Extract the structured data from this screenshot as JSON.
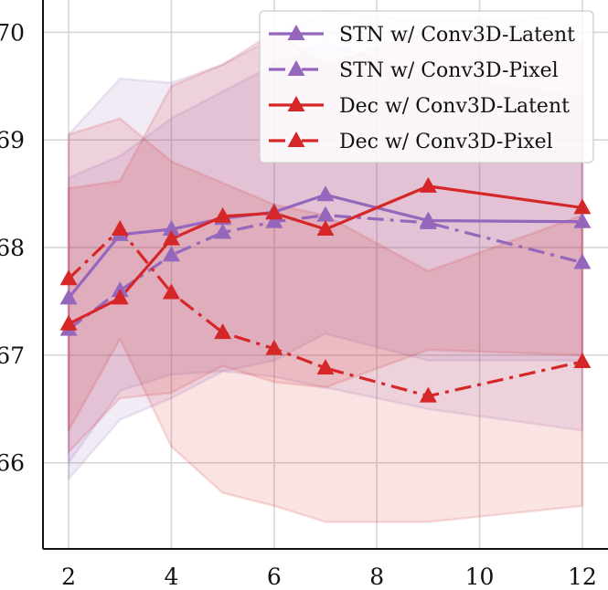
{
  "chart_data": {
    "type": "line",
    "title": "",
    "xlabel": "",
    "ylabel": "",
    "xlim": [
      1.5,
      12.5
    ],
    "ylim": [
      65.2,
      70.3
    ],
    "xticks": [
      2,
      4,
      6,
      8,
      10,
      12
    ],
    "yticks": [
      66,
      67,
      68,
      69,
      70
    ],
    "grid": true,
    "legend_position": "top-right",
    "x": [
      2,
      3,
      4,
      5,
      6,
      7,
      9,
      12
    ],
    "series": [
      {
        "name": "STN w/ Conv3D-Latent",
        "color": "#9467bd",
        "linestyle": "solid",
        "marker": "triangle",
        "values": [
          67.53,
          68.12,
          68.17,
          68.27,
          68.33,
          68.49,
          68.25,
          68.24
        ],
        "band_upper": [
          69.05,
          69.57,
          69.53,
          69.7,
          69.95,
          70.2,
          70.1,
          70.15
        ],
        "band_lower": [
          66.0,
          66.67,
          66.82,
          66.85,
          66.95,
          67.2,
          66.95,
          66.95
        ]
      },
      {
        "name": "STN w/ Conv3D-Pixel",
        "color": "#9467bd",
        "linestyle": "dashdot",
        "marker": "triangle",
        "values": [
          67.24,
          67.6,
          67.93,
          68.14,
          68.24,
          68.3,
          68.23,
          67.86
        ],
        "band_upper": [
          68.65,
          68.85,
          69.2,
          69.45,
          69.7,
          69.9,
          69.6,
          69.4
        ],
        "band_lower": [
          65.85,
          66.4,
          66.6,
          66.85,
          66.8,
          66.7,
          66.5,
          66.3
        ]
      },
      {
        "name": "Dec w/ Conv3D-Latent",
        "color": "#d62728",
        "linestyle": "solid",
        "marker": "triangle",
        "values": [
          67.29,
          67.53,
          68.08,
          68.29,
          68.32,
          68.17,
          68.57,
          68.37
        ],
        "band_upper": [
          68.55,
          68.62,
          69.5,
          69.7,
          70.0,
          69.7,
          70.0,
          69.9
        ],
        "band_lower": [
          66.1,
          66.6,
          66.65,
          66.9,
          66.75,
          66.7,
          67.05,
          67.0
        ]
      },
      {
        "name": "Dec w/ Conv3D-Pixel",
        "color": "#d62728",
        "linestyle": "dashdot",
        "marker": "triangle",
        "values": [
          67.71,
          68.17,
          67.58,
          67.21,
          67.06,
          66.88,
          66.62,
          66.94
        ],
        "band_upper": [
          69.05,
          69.2,
          68.8,
          68.6,
          68.4,
          68.3,
          67.78,
          68.3
        ],
        "band_lower": [
          66.3,
          67.15,
          66.15,
          65.72,
          65.6,
          65.45,
          65.45,
          65.6
        ]
      }
    ]
  }
}
